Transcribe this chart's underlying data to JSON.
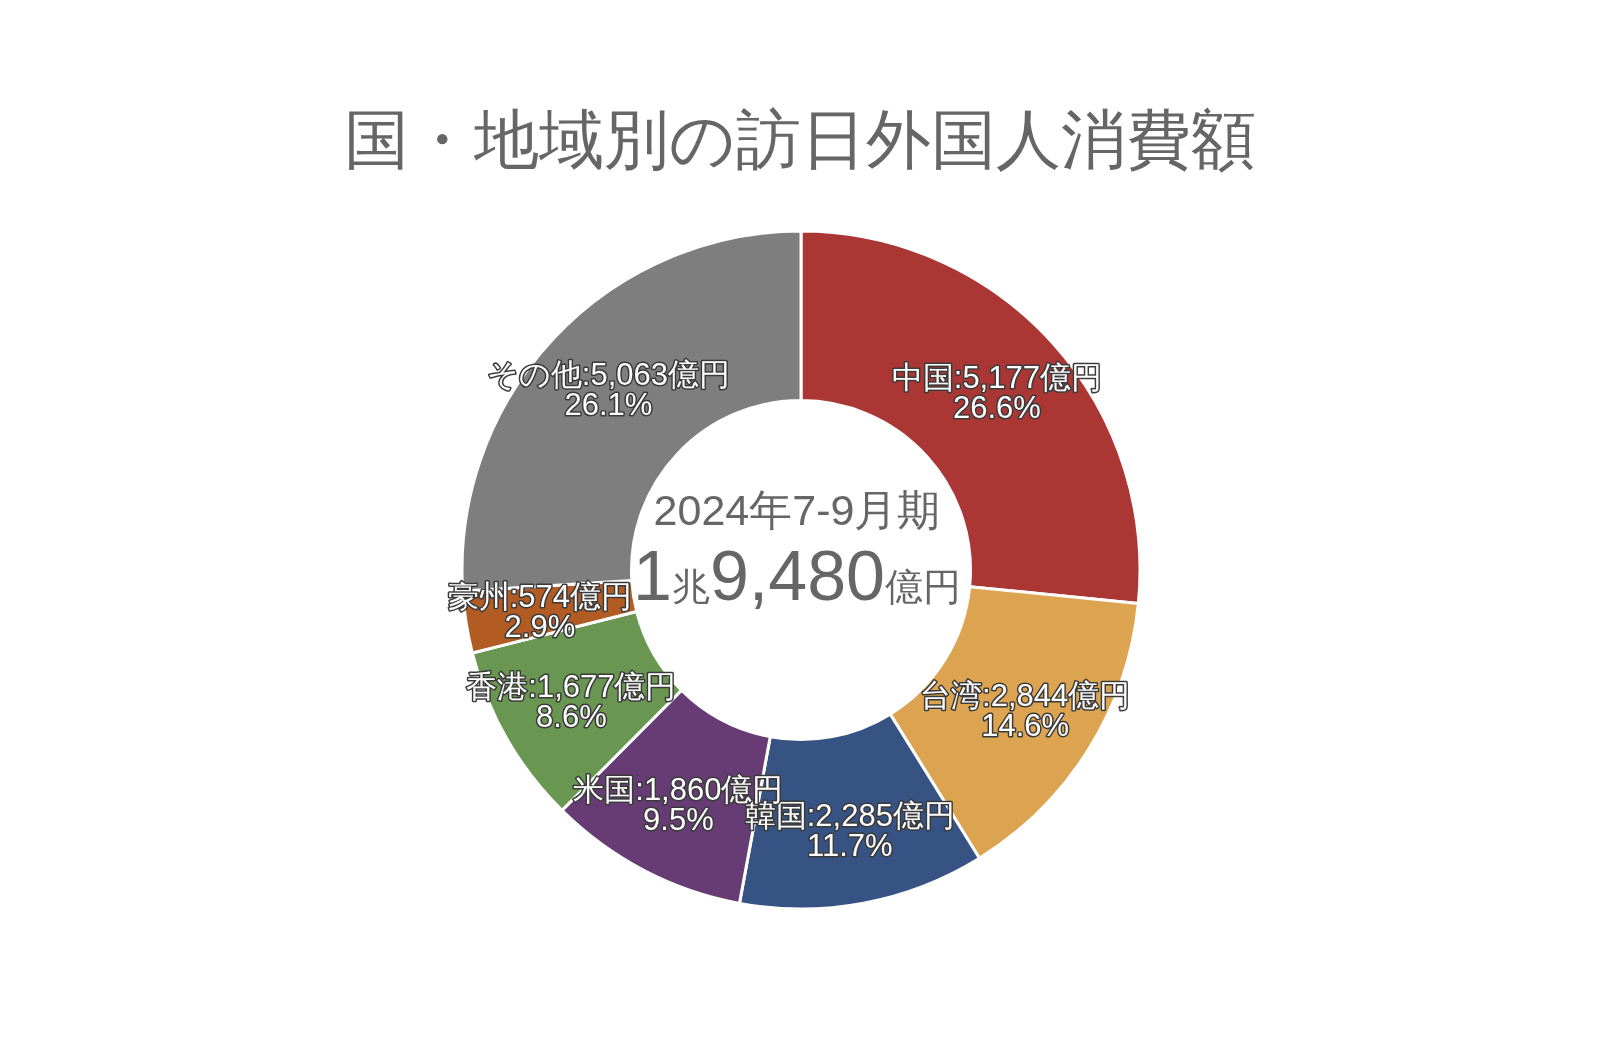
{
  "chart_data": {
    "type": "donut",
    "title": "国・地域別の訪日外国人消費額",
    "categories": [
      "中国",
      "台湾",
      "韓国",
      "米国",
      "香港",
      "豪州",
      "その他"
    ],
    "values": [
      5177,
      2844,
      2285,
      1860,
      1677,
      574,
      5063
    ],
    "colors": [
      "#ab3735",
      "#dca450",
      "#365384",
      "#673c74",
      "#699650",
      "#b25c24",
      "#7d7e7d"
    ],
    "value_labels": [
      ":5,177億円\n26.6%",
      ":2,844億円\n14.6%",
      ":2,285億円\n11.7%",
      ":1,860億円\n9.5%",
      ":1,677億円\n8.6%",
      ":574億円\n2.9%",
      ":5,063億円\n26.1%"
    ],
    "annotations": [
      "2024年7-9月期",
      "1兆9,480億円"
    ]
  }
}
